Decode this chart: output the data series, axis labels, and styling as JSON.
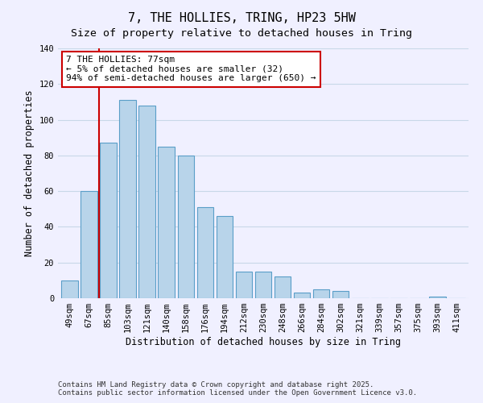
{
  "title": "7, THE HOLLIES, TRING, HP23 5HW",
  "subtitle": "Size of property relative to detached houses in Tring",
  "xlabel": "Distribution of detached houses by size in Tring",
  "ylabel": "Number of detached properties",
  "bar_labels": [
    "49sqm",
    "67sqm",
    "85sqm",
    "103sqm",
    "121sqm",
    "140sqm",
    "158sqm",
    "176sqm",
    "194sqm",
    "212sqm",
    "230sqm",
    "248sqm",
    "266sqm",
    "284sqm",
    "302sqm",
    "321sqm",
    "339sqm",
    "357sqm",
    "375sqm",
    "393sqm",
    "411sqm"
  ],
  "bar_values": [
    10,
    60,
    87,
    111,
    108,
    85,
    80,
    51,
    46,
    15,
    15,
    12,
    3,
    5,
    4,
    0,
    0,
    0,
    0,
    1,
    0
  ],
  "bar_color": "#b8d4ea",
  "bar_edge_color": "#5a9ec8",
  "vline_color": "#cc0000",
  "annotation_title": "7 THE HOLLIES: 77sqm",
  "annotation_line1": "← 5% of detached houses are smaller (32)",
  "annotation_line2": "94% of semi-detached houses are larger (650) →",
  "annotation_box_color": "#ffffff",
  "annotation_box_edge": "#cc0000",
  "ylim": [
    0,
    140
  ],
  "yticks": [
    0,
    20,
    40,
    60,
    80,
    100,
    120,
    140
  ],
  "footer1": "Contains HM Land Registry data © Crown copyright and database right 2025.",
  "footer2": "Contains public sector information licensed under the Open Government Licence v3.0.",
  "background_color": "#f0f0ff",
  "grid_color": "#c8d8e8",
  "title_fontsize": 11,
  "subtitle_fontsize": 9.5,
  "axis_label_fontsize": 8.5,
  "tick_label_fontsize": 7.5,
  "annotation_fontsize": 8,
  "footer_fontsize": 6.5
}
